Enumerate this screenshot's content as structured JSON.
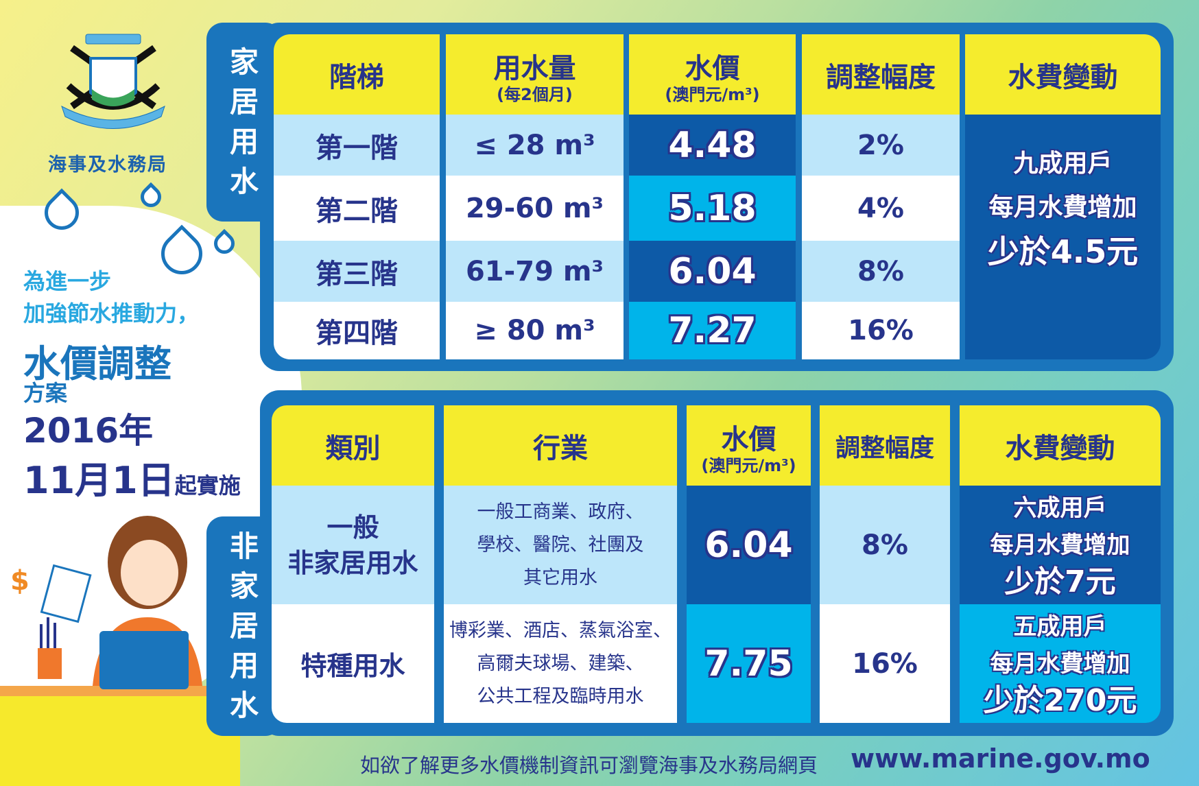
{
  "org": {
    "name": "海事及水務局"
  },
  "intro": {
    "line1": "為進一步",
    "line2": "加強節水推動力，",
    "title": "水價調整",
    "subtitle": "方案",
    "year": "2016年",
    "date": "11月1日",
    "date_suffix": "起實施"
  },
  "domestic": {
    "tab": [
      "家",
      "居",
      "用",
      "水"
    ],
    "headers": {
      "tier": "階梯",
      "usage": "用水量",
      "usage_note": "(每2個月)",
      "price": "水價",
      "price_note": "(澳門元/m³)",
      "adjust": "調整幅度",
      "change": "水費變動"
    },
    "rows": [
      {
        "tier": "第一階",
        "usage": "≤ 28 m³",
        "price": "4.48",
        "adjust": "2%"
      },
      {
        "tier": "第二階",
        "usage": "29-60 m³",
        "price": "5.18",
        "adjust": "4%"
      },
      {
        "tier": "第三階",
        "usage": "61-79 m³",
        "price": "6.04",
        "adjust": "8%"
      },
      {
        "tier": "第四階",
        "usage": "≥ 80 m³",
        "price": "7.27",
        "adjust": "16%"
      }
    ],
    "change": [
      "九成用戶",
      "每月水費增加",
      "少於4.5元"
    ]
  },
  "non_domestic": {
    "tab": [
      "非",
      "家",
      "居",
      "用",
      "水"
    ],
    "headers": {
      "category": "類別",
      "industry": "行業",
      "price": "水價",
      "price_note": "(澳門元/m³)",
      "adjust": "調整幅度",
      "change": "水費變動"
    },
    "rows": [
      {
        "category": [
          "一般",
          "非家居用水"
        ],
        "industry": [
          "一般工商業、政府、",
          "學校、醫院、社團及",
          "其它用水"
        ],
        "price": "6.04",
        "adjust": "8%",
        "change": [
          "六成用戶",
          "每月水費增加",
          "少於7元"
        ]
      },
      {
        "category": [
          "特種用水"
        ],
        "industry": [
          "博彩業、酒店、蒸氣浴室、",
          "高爾夫球場、建築、",
          "公共工程及臨時用水"
        ],
        "price": "7.75",
        "adjust": "16%",
        "change": [
          "五成用戶",
          "每月水費增加",
          "少於270元"
        ]
      }
    ]
  },
  "footer": {
    "text": "如欲了解更多水價機制資訊可瀏覽海事及水務局網頁",
    "url": "www.marine.gov.mo"
  }
}
